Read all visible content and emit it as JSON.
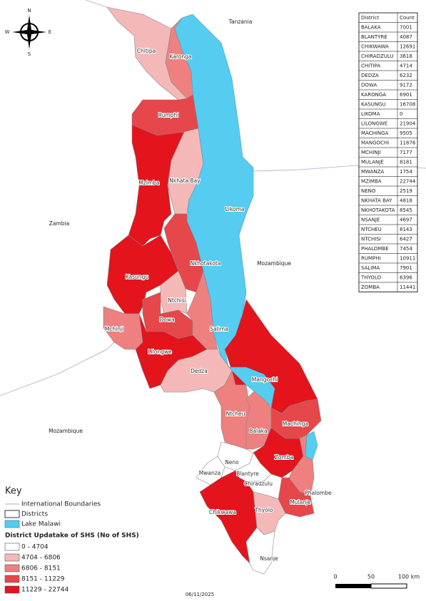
{
  "compass": {
    "north": "N",
    "south": "S",
    "east": "E",
    "west": "W"
  },
  "countries": [
    "Tanzania",
    "Zambia",
    "Mozambique",
    "Mozambique"
  ],
  "map_labels": [
    "Chitipa",
    "Karonga",
    "Rumphi",
    "Mzimba",
    "Nkhata Bay",
    "Likoma",
    "Nkhotakota",
    "Kasungu",
    "Ntchisi",
    "Dowa",
    "Salima",
    "Mchinji",
    "Lilongwe",
    "Dedza",
    "Mangochi",
    "Ntcheu",
    "Balaka",
    "Machinga",
    "Zomba",
    "Neno",
    "Mwanza",
    "Blantyre",
    "Chiradzulu",
    "Phalombe",
    "Mulanje",
    "Thyolo",
    "Chikwawa",
    "Nsanje"
  ],
  "table": {
    "header": [
      "District",
      "Count"
    ],
    "rows": [
      [
        "BALAKA",
        7001
      ],
      [
        "BLANTYRE",
        4087
      ],
      [
        "CHIKWAWA",
        12691
      ],
      [
        "CHIRADZULU",
        3618
      ],
      [
        "CHITIPA",
        4714
      ],
      [
        "DEDZA",
        6232
      ],
      [
        "DOWA",
        9172
      ],
      [
        "KARONGA",
        6901
      ],
      [
        "KASUNGU",
        16708
      ],
      [
        "LIKOMA",
        0
      ],
      [
        "LILONGWE",
        21904
      ],
      [
        "MACHINGA",
        9505
      ],
      [
        "MANGOCHI",
        11876
      ],
      [
        "MCHINJI",
        7177
      ],
      [
        "MULANJE",
        8181
      ],
      [
        "MWANZA",
        1754
      ],
      [
        "MZIMBA",
        22744
      ],
      [
        "NENO",
        2519
      ],
      [
        "NKHATA BAY",
        4818
      ],
      [
        "NKHOTAKOTA",
        8545
      ],
      [
        "NSANJE",
        4697
      ],
      [
        "NTCHEU",
        8143
      ],
      [
        "NTCHISI",
        6427
      ],
      [
        "PHALOMBE",
        7454
      ],
      [
        "RUMPHI",
        10911
      ],
      [
        "SALIMA",
        7901
      ],
      [
        "THYOLO",
        6396
      ],
      [
        "ZOMBA",
        11441
      ]
    ]
  },
  "key": {
    "title": "Key",
    "layers": [
      "International Boundaries",
      "Districts",
      "Lake Malawi"
    ],
    "boundary_color": "#b3a6d6",
    "lake_color": "#55ccf0",
    "legend": {
      "title": "District Updatake of SHS (No of SHS)",
      "classes": [
        {
          "label": "0 - 4704",
          "color": "#ffffff"
        },
        {
          "label": "4704 - 6806",
          "color": "#f5b8b8"
        },
        {
          "label": "6806 - 8151",
          "color": "#ee8080"
        },
        {
          "label": "8151 - 11229",
          "color": "#e5474a"
        },
        {
          "label": "11229 - 22744",
          "color": "#e3141c"
        }
      ]
    }
  },
  "scale_bar": {
    "labels": [
      "0",
      "50",
      "100 km"
    ]
  },
  "date": "06/11/2025"
}
